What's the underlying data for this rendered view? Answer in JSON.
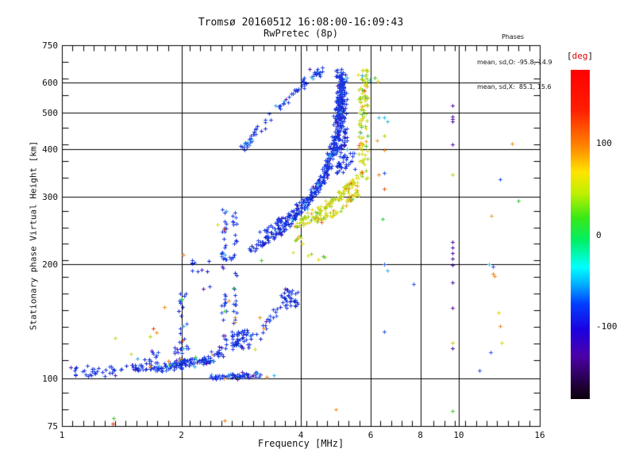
{
  "annotation": {
    "line1": "Phases",
    "line2": "mean, sd,O: -95.8, 14.9",
    "line3": "mean, sd,X:  85.1, 15.6"
  },
  "colorbar_label": {
    "open": "[",
    "text": "deg",
    "close": "]"
  },
  "chart_data": {
    "type": "scatter",
    "title": "Tromsø 20160512 16:08:00-16:09:43",
    "subtitle": "RwPretec (8p)",
    "xlabel": "Frequency [MHz]",
    "ylabel": "Stationary phase Virtual Height [km]",
    "xscale": "log",
    "yscale": "log",
    "xlim": [
      1,
      16
    ],
    "ylim": [
      75,
      750
    ],
    "xticks": [
      1,
      2,
      4,
      6,
      8,
      10,
      16
    ],
    "yticks": [
      75,
      100,
      200,
      300,
      400,
      500,
      600,
      750
    ],
    "grid_x": [
      2,
      4,
      6,
      8,
      10
    ],
    "grid_y": [
      100,
      200,
      300,
      400,
      500,
      600
    ],
    "grid": true,
    "phase_stats": {
      "o_mean": -95.8,
      "o_sd": 14.9,
      "x_mean": 85.1,
      "x_sd": 15.6
    },
    "colorbar": {
      "unit": "deg",
      "min": -180,
      "max": 180,
      "ticks": [
        100,
        0,
        -100
      ],
      "stops": [
        [
          "#ff0000",
          0
        ],
        [
          "#ff1c00",
          0.12
        ],
        [
          "#ff8800",
          0.235
        ],
        [
          "#ffe400",
          0.31
        ],
        [
          "#c0f000",
          0.375
        ],
        [
          "#38e818",
          0.45
        ],
        [
          "#00f068",
          0.52
        ],
        [
          "#00ffff",
          0.6
        ],
        [
          "#00a8ff",
          0.655
        ],
        [
          "#0040ff",
          0.71
        ],
        [
          "#1c00e0",
          0.79
        ],
        [
          "#4c00a8",
          0.87
        ],
        [
          "#1c0030",
          0.965
        ],
        [
          "#0d000d",
          1
        ]
      ]
    },
    "palettes": {
      "blue": [
        [
          "#1b38e0",
          0.62
        ],
        [
          "#2e55f2",
          0.15
        ],
        [
          "#0f22c0",
          0.1
        ],
        [
          "#28a8e8",
          0.06
        ],
        [
          "#5512b0",
          0.04
        ],
        [
          "#f08020",
          0.015
        ],
        [
          "#38c838",
          0.015
        ]
      ],
      "blueDense": [
        [
          "#1b38e0",
          0.6
        ],
        [
          "#2444ec",
          0.2
        ],
        [
          "#0f22c0",
          0.12
        ],
        [
          "#28a8e8",
          0.05
        ],
        [
          "#5512b0",
          0.03
        ]
      ],
      "arc": [
        [
          "#2040e8",
          0.72
        ],
        [
          "#1a30d0",
          0.12
        ],
        [
          "#28a8e8",
          0.1
        ],
        [
          "#5512b0",
          0.04
        ],
        [
          "#30c0c0",
          0.02
        ]
      ],
      "yellow": [
        [
          "#e0dc20",
          0.42
        ],
        [
          "#c0d820",
          0.25
        ],
        [
          "#98d020",
          0.14
        ],
        [
          "#f0a020",
          0.09
        ],
        [
          "#48c830",
          0.05
        ],
        [
          "#f05818",
          0.03
        ],
        [
          "#28a8e8",
          0.02
        ]
      ],
      "warm": [
        [
          "#f09020",
          0.35
        ],
        [
          "#e84010",
          0.2
        ],
        [
          "#48c830",
          0.25
        ],
        [
          "#d8d820",
          0.2
        ]
      ]
    },
    "series": [
      {
        "name": "e-floor-sparse",
        "kind": "trace",
        "n": 22,
        "path": [
          [
            1.04,
            104
          ],
          [
            1.3,
            105
          ]
        ],
        "jf": 0.01,
        "jh": 0.007,
        "palette": "blue"
      },
      {
        "name": "e-floor-main",
        "kind": "trace",
        "n": 130,
        "path": [
          [
            1.3,
            105
          ],
          [
            1.7,
            107
          ],
          [
            2.0,
            109
          ],
          [
            2.35,
            112
          ]
        ],
        "jf": 0.008,
        "jh": 0.006,
        "palette": "blue"
      },
      {
        "name": "e-floor-pocket1",
        "kind": "cloud",
        "n": 18,
        "f": [
          1.55,
          1.75
        ],
        "h": [
          106,
          119
        ],
        "palette": "blue"
      },
      {
        "name": "e-floor-pocket2",
        "kind": "cloud",
        "n": 26,
        "f": [
          1.9,
          2.18
        ],
        "h": [
          105,
          121
        ],
        "palette": "blue"
      },
      {
        "name": "e-floor-right",
        "kind": "trace",
        "n": 60,
        "path": [
          [
            2.35,
            101
          ],
          [
            2.7,
            101.5
          ],
          [
            3.05,
            102
          ]
        ],
        "jf": 0.006,
        "jh": 0.004,
        "palette": "blue"
      },
      {
        "name": "e-floor-tail",
        "kind": "cloud",
        "n": 7,
        "f": [
          3.05,
          3.3
        ],
        "h": [
          100,
          104
        ],
        "palette": "blue"
      },
      {
        "name": "rise-2-4",
        "kind": "trace",
        "n": 22,
        "path": [
          [
            2.28,
            110
          ],
          [
            2.42,
            116
          ],
          [
            2.52,
            121
          ]
        ],
        "jf": 0.006,
        "jh": 0.007,
        "palette": "blue"
      },
      {
        "name": "col-2-0",
        "kind": "cloud",
        "n": 20,
        "f": [
          1.97,
          2.07
        ],
        "h": [
          118,
          168
        ],
        "palette": "blue"
      },
      {
        "name": "scatter-2-2",
        "kind": "cloud",
        "n": 11,
        "f": [
          2.08,
          2.36
        ],
        "h": [
          172,
          208
        ],
        "palette": "blue"
      },
      {
        "name": "col-2-55",
        "kind": "cloud",
        "n": 38,
        "f": [
          2.52,
          2.6
        ],
        "h": [
          113,
          282
        ],
        "palette": "blue"
      },
      {
        "name": "col-2-72",
        "kind": "cloud",
        "n": 26,
        "f": [
          2.69,
          2.76
        ],
        "h": [
          136,
          298
        ],
        "palette": "blue"
      },
      {
        "name": "blob-2-8",
        "kind": "cloud",
        "n": 48,
        "f": [
          2.67,
          2.96
        ],
        "h": [
          119,
          134
        ],
        "palette": "blueDense"
      },
      {
        "name": "hook-rise",
        "kind": "trace",
        "n": 24,
        "path": [
          [
            2.98,
            126
          ],
          [
            3.2,
            136
          ],
          [
            3.45,
            150
          ],
          [
            3.68,
            160
          ]
        ],
        "jf": 0.006,
        "jh": 0.008,
        "palette": "blue"
      },
      {
        "name": "es-patch",
        "kind": "cloud",
        "n": 34,
        "f": [
          3.55,
          3.95
        ],
        "h": [
          155,
          172
        ],
        "palette": "blueDense"
      },
      {
        "name": "gap-sparse",
        "kind": "cloud",
        "n": 9,
        "f": [
          2.5,
          2.78
        ],
        "h": [
          192,
          228
        ],
        "palette": "blue"
      },
      {
        "name": "o-trace-main",
        "kind": "trace",
        "n": 320,
        "path": [
          [
            2.97,
            218
          ],
          [
            3.2,
            228
          ],
          [
            3.5,
            243
          ],
          [
            3.8,
            261
          ],
          [
            4.1,
            284
          ],
          [
            4.35,
            308
          ],
          [
            4.55,
            336
          ],
          [
            4.72,
            368
          ],
          [
            4.85,
            406
          ],
          [
            4.95,
            452
          ],
          [
            5.02,
            510
          ],
          [
            5.06,
            565
          ],
          [
            5.09,
            622
          ]
        ],
        "jf": 0.004,
        "jh": 0.006,
        "palette": "blueDense"
      },
      {
        "name": "o-trace-2",
        "kind": "trace",
        "n": 140,
        "path": [
          [
            3.12,
            240
          ],
          [
            3.45,
            255
          ],
          [
            3.75,
            270
          ],
          [
            4.05,
            290
          ],
          [
            4.3,
            312
          ],
          [
            4.52,
            340
          ],
          [
            4.68,
            376
          ],
          [
            4.82,
            424
          ],
          [
            4.92,
            478
          ],
          [
            5.0,
            542
          ],
          [
            5.04,
            598
          ]
        ],
        "jf": 0.004,
        "jh": 0.005,
        "palette": "blueDense"
      },
      {
        "name": "o-col",
        "kind": "cloud",
        "n": 150,
        "f": [
          4.9,
          5.24
        ],
        "h": [
          345,
          650
        ],
        "palette": "blueDense"
      },
      {
        "name": "o-col-right",
        "kind": "cloud",
        "n": 8,
        "f": [
          5.25,
          5.5
        ],
        "h": [
          330,
          400
        ],
        "palette": "blue"
      },
      {
        "name": "arc",
        "kind": "trace",
        "n": 80,
        "path": [
          [
            2.87,
            403
          ],
          [
            3.0,
            426
          ],
          [
            3.2,
            462
          ],
          [
            3.45,
            504
          ],
          [
            3.72,
            546
          ],
          [
            3.98,
            586
          ],
          [
            4.18,
            612
          ],
          [
            4.38,
            633
          ],
          [
            4.48,
            642
          ]
        ],
        "jf": 0.005,
        "jh": 0.005,
        "palette": "arc"
      },
      {
        "name": "x-trace",
        "kind": "trace",
        "n": 120,
        "path": [
          [
            3.85,
            251
          ],
          [
            4.15,
            263
          ],
          [
            4.45,
            275
          ],
          [
            4.75,
            289
          ],
          [
            5.0,
            302
          ],
          [
            5.25,
            316
          ],
          [
            5.45,
            330
          ]
        ],
        "jf": 0.005,
        "jh": 0.007,
        "palette": "yellow"
      },
      {
        "name": "x-trace-2",
        "kind": "trace",
        "n": 55,
        "path": [
          [
            4.3,
            260
          ],
          [
            4.7,
            268
          ],
          [
            5.05,
            278
          ],
          [
            5.35,
            294
          ],
          [
            5.52,
            312
          ]
        ],
        "jf": 0.005,
        "jh": 0.004,
        "palette": "yellow"
      },
      {
        "name": "x-col",
        "kind": "cloud",
        "n": 105,
        "f": [
          5.58,
          5.9
        ],
        "h": [
          335,
          648
        ],
        "palette": "yellow"
      },
      {
        "name": "x-cusp-sparse",
        "kind": "cloud",
        "n": 8,
        "f": [
          3.8,
          4.05
        ],
        "h": [
          208,
          242
        ],
        "palette": "yellow"
      },
      {
        "name": "x-low-sparse",
        "kind": "cloud",
        "n": 5,
        "f": [
          4.15,
          4.6
        ],
        "h": [
          202,
          214
        ],
        "palette": "yellow"
      },
      {
        "name": "sprinkle-warm",
        "kind": "cloud",
        "n": 12,
        "f": [
          1.3,
          3.3
        ],
        "h": [
          100,
          290
        ],
        "palette": "warm"
      }
    ],
    "points": [
      [
        1.36,
        128,
        "#d8d820"
      ],
      [
        1.67,
        129,
        "#a8d820"
      ],
      [
        1.7,
        135,
        "#e84810"
      ],
      [
        1.73,
        132,
        "#f09020"
      ],
      [
        1.34,
        76,
        "#e83010"
      ],
      [
        1.35,
        78.5,
        "#48c830"
      ],
      [
        2.57,
        77.5,
        "#f08020"
      ],
      [
        4.9,
        83,
        "#f09020"
      ],
      [
        9.66,
        82,
        "#48c830"
      ],
      [
        3.42,
        102,
        "#30b8e8"
      ],
      [
        1.05,
        107,
        "#5a10b0"
      ],
      [
        4.21,
        650,
        "#5a10b0"
      ],
      [
        6.13,
        616,
        "#48c830"
      ],
      [
        5.96,
        606,
        "#30c0a0"
      ],
      [
        6.24,
        604,
        "#d8d820"
      ],
      [
        6.27,
        484,
        "#30c0e8"
      ],
      [
        6.5,
        484,
        "#30c0e8"
      ],
      [
        6.62,
        473,
        "#30c0e8"
      ],
      [
        6.5,
        434,
        "#a8d820"
      ],
      [
        6.21,
        421,
        "#f0a020"
      ],
      [
        6.5,
        398,
        "#f09020"
      ],
      [
        9.63,
        522,
        "#5a10b0"
      ],
      [
        9.63,
        487,
        "#4a10a0"
      ],
      [
        9.63,
        480,
        "#4a10a0"
      ],
      [
        9.63,
        473,
        "#4a10a0"
      ],
      [
        9.63,
        411,
        "#5a10b0"
      ],
      [
        13.6,
        413,
        "#f09020"
      ],
      [
        6.27,
        343,
        "#f08820"
      ],
      [
        6.5,
        346,
        "#2858e8"
      ],
      [
        9.63,
        343,
        "#a8d820"
      ],
      [
        12.7,
        333,
        "#2858e8"
      ],
      [
        6.5,
        315,
        "#e85818"
      ],
      [
        14.1,
        293,
        "#38c838"
      ],
      [
        12.1,
        268,
        "#e8a820"
      ],
      [
        6.44,
        262,
        "#38c838"
      ],
      [
        9.63,
        228,
        "#4a10a0"
      ],
      [
        9.63,
        221,
        "#4a10a0"
      ],
      [
        9.63,
        213,
        "#5a10b0"
      ],
      [
        9.63,
        206,
        "#4a10a0"
      ],
      [
        9.63,
        199,
        "#4a10a0"
      ],
      [
        9.63,
        179,
        "#4a10a0"
      ],
      [
        9.63,
        153,
        "#5a10b0"
      ],
      [
        9.66,
        124,
        "#d8c820"
      ],
      [
        9.66,
        120,
        "#4a10a0"
      ],
      [
        12.0,
        117,
        "#2858e8"
      ],
      [
        11.3,
        105,
        "#2858e8"
      ],
      [
        6.5,
        133,
        "#2858e8"
      ],
      [
        6.62,
        192,
        "#30b8e8"
      ],
      [
        6.5,
        200,
        "#2858e8"
      ],
      [
        7.7,
        177,
        "#2858e8"
      ],
      [
        11.9,
        200,
        "#30b8e8"
      ],
      [
        12.2,
        197,
        "#2858e8"
      ],
      [
        12.2,
        188,
        "#f08820"
      ],
      [
        12.3,
        186,
        "#f08820"
      ],
      [
        12.6,
        149,
        "#d8d820"
      ],
      [
        12.7,
        137,
        "#f09020"
      ],
      [
        12.8,
        124,
        "#d8d820"
      ]
    ]
  }
}
